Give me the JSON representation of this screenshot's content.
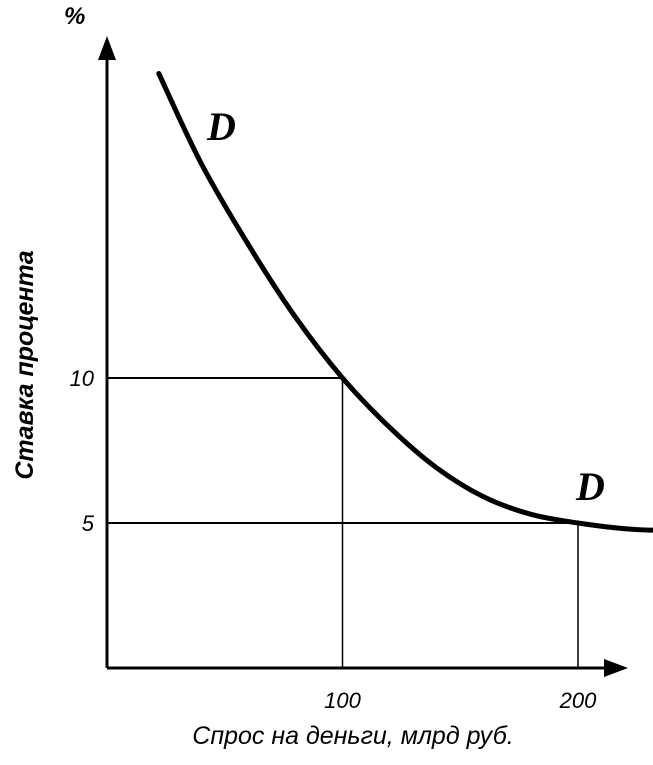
{
  "chart_data": {
    "type": "line",
    "y_unit": "%",
    "ylabel": "Ставка процента",
    "xlabel": "Спрос на деньги, млрд руб.",
    "x_ticks": [
      "100",
      "200"
    ],
    "y_ticks": [
      "10",
      "5"
    ],
    "series": [
      {
        "name": "D",
        "x": [
          22,
          40,
          60,
          80,
          100,
          120,
          140,
          160,
          180,
          200,
          220,
          233
        ],
        "y": [
          20.5,
          17.4,
          14.6,
          12.1,
          10.0,
          8.3,
          6.9,
          5.9,
          5.3,
          5.0,
          4.8,
          4.75
        ]
      }
    ],
    "reference_points": [
      {
        "x": 100,
        "y": 10
      },
      {
        "x": 200,
        "y": 5
      }
    ],
    "curve_labels": [
      "D",
      "D"
    ],
    "xlim": [
      0,
      235
    ],
    "ylim": [
      0,
      21
    ],
    "grid": false
  }
}
